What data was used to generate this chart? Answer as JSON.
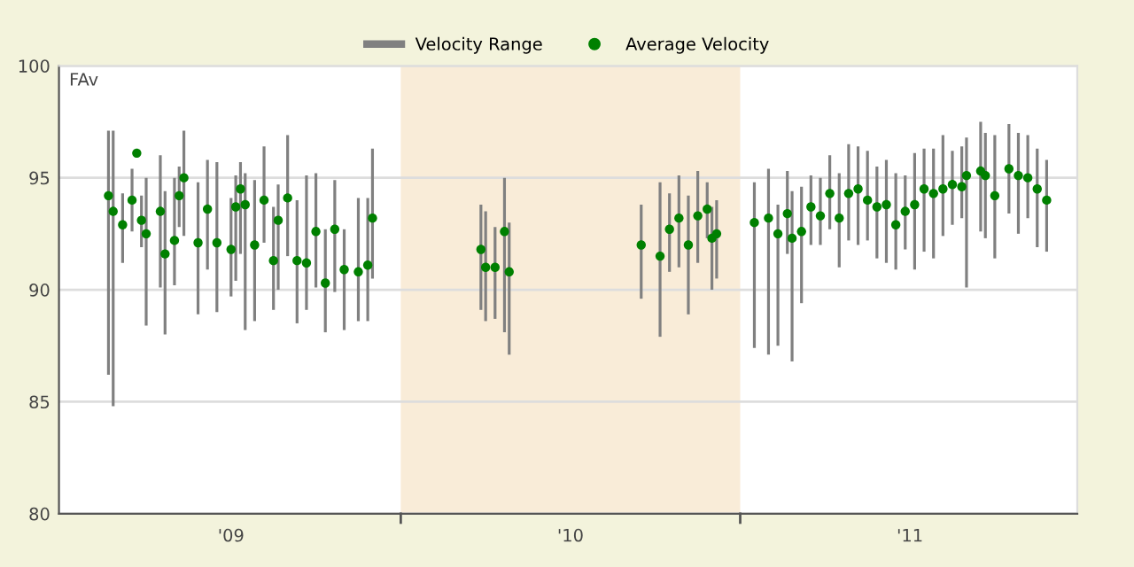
{
  "chart_data": {
    "type": "scatter",
    "ylabel": "FAv",
    "categories": [
      null,
      null,
      null,
      null,
      null,
      null,
      null,
      null,
      null,
      null,
      null,
      null,
      null,
      null,
      null,
      null,
      null,
      null,
      null,
      null,
      null,
      null,
      null,
      null,
      null,
      null,
      null,
      null,
      null,
      null,
      null,
      null,
      null,
      null,
      null,
      null,
      "'09",
      null,
      null,
      null,
      null,
      null,
      null,
      null,
      null,
      null,
      null,
      null,
      null,
      null,
      null,
      null,
      null,
      null,
      null,
      null,
      null,
      null,
      null,
      null,
      null,
      null,
      null,
      null,
      null,
      null,
      null,
      null,
      null,
      null,
      null,
      null,
      null,
      null,
      null,
      null,
      null,
      null,
      null,
      null,
      null,
      null,
      null,
      null,
      null,
      null,
      null,
      null,
      null,
      null,
      null,
      null,
      null,
      null,
      null,
      null,
      null,
      null,
      null,
      null,
      null,
      null,
      null,
      null,
      null,
      null,
      null,
      null,
      "'10",
      null,
      null,
      null,
      null,
      null,
      null,
      null,
      null,
      null,
      null,
      null,
      null,
      null,
      null,
      null,
      null,
      null,
      null,
      null,
      null,
      null,
      null,
      null,
      null,
      null,
      null,
      null,
      null,
      null,
      null,
      null,
      null,
      null,
      null,
      null,
      null,
      null,
      null,
      null,
      null,
      null,
      null,
      null,
      null,
      null,
      null,
      null,
      null,
      null,
      null,
      null,
      null,
      null,
      null,
      null,
      null,
      null,
      null,
      null,
      null,
      null,
      null,
      null,
      null,
      null,
      null,
      null,
      null,
      null,
      null,
      null,
      "'11",
      null,
      null,
      null,
      null,
      null,
      null,
      null,
      null,
      null,
      null,
      null,
      null,
      null,
      null,
      null,
      null,
      null,
      null,
      null,
      null,
      null,
      null,
      null,
      null,
      null,
      null,
      null,
      null,
      null,
      null,
      null,
      null,
      null,
      null,
      null
    ],
    "ylim": [
      80,
      100
    ],
    "yticks": [
      80,
      85,
      90,
      95,
      100
    ],
    "grid": "y",
    "legend": "top",
    "series": [
      {
        "name": "Velocity Range",
        "type": "bar",
        "color": "#808080",
        "base": [
          null,
          null,
          null,
          null,
          null,
          null,
          null,
          null,
          null,
          null,
          86.2,
          84.8,
          null,
          91.2,
          null,
          92.6,
          null,
          91.9,
          88.4,
          null,
          null,
          90.1,
          88.0,
          null,
          90.2,
          92.8,
          92.4,
          null,
          null,
          88.9,
          null,
          90.9,
          null,
          89.0,
          null,
          null,
          89.7,
          90.4,
          91.6,
          88.2,
          null,
          88.6,
          null,
          92.1,
          null,
          89.1,
          90.0,
          null,
          91.5,
          null,
          88.5,
          null,
          89.1,
          null,
          90.1,
          null,
          88.1,
          null,
          89.9,
          null,
          88.2,
          null,
          null,
          88.6,
          null,
          88.6,
          90.5,
          null,
          null,
          null,
          null,
          null,
          null,
          null,
          null,
          null,
          null,
          null,
          null,
          null,
          null,
          null,
          null,
          null,
          null,
          null,
          null,
          null,
          null,
          89.1,
          88.6,
          null,
          88.7,
          null,
          88.1,
          87.1,
          null,
          null,
          null,
          null,
          null,
          null,
          null,
          null,
          null,
          null,
          null,
          null,
          null,
          null,
          null,
          null,
          null,
          null,
          null,
          null,
          null,
          null,
          null,
          null,
          null,
          null,
          null,
          89.6,
          null,
          null,
          null,
          87.9,
          null,
          90.8,
          null,
          91.0,
          null,
          88.9,
          null,
          91.2,
          null,
          92.3,
          90.0,
          90.5,
          null,
          null,
          null,
          null,
          null,
          null,
          null,
          87.4,
          null,
          null,
          87.1,
          null,
          87.5,
          null,
          91.6,
          86.8,
          null,
          89.4,
          null,
          92.0,
          null,
          92.0,
          null,
          92.7,
          null,
          91.0,
          null,
          92.2,
          null,
          92.0,
          null,
          92.2,
          null,
          91.4,
          null,
          91.2,
          null,
          90.9,
          null,
          91.8,
          null,
          90.9,
          null,
          91.7,
          null,
          91.4,
          null,
          92.4,
          null,
          92.9,
          null,
          93.2,
          90.1,
          null,
          null,
          92.6,
          92.3,
          null,
          91.4,
          null,
          null,
          93.4,
          null,
          92.5,
          null,
          93.2,
          null,
          91.9,
          null,
          91.7,
          null,
          null,
          null,
          null,
          null,
          null
        ],
        "values": [
          null,
          null,
          null,
          null,
          null,
          null,
          null,
          null,
          null,
          null,
          10.9,
          12.3,
          null,
          3.1,
          null,
          2.8,
          null,
          2.3,
          6.6,
          null,
          null,
          5.9,
          6.4,
          null,
          4.8,
          2.7,
          4.7,
          null,
          null,
          5.9,
          null,
          4.9,
          null,
          6.7,
          null,
          null,
          4.4,
          4.7,
          4.1,
          7.0,
          null,
          6.3,
          null,
          4.3,
          null,
          4.6,
          4.7,
          null,
          5.4,
          null,
          5.5,
          null,
          6.0,
          null,
          5.1,
          null,
          4.6,
          null,
          5.0,
          null,
          4.5,
          null,
          null,
          5.5,
          null,
          5.5,
          5.8,
          null,
          null,
          null,
          null,
          null,
          null,
          null,
          null,
          null,
          null,
          null,
          null,
          null,
          null,
          null,
          null,
          null,
          null,
          null,
          null,
          null,
          null,
          4.7,
          4.9,
          null,
          4.1,
          null,
          6.9,
          5.9,
          null,
          null,
          null,
          null,
          null,
          null,
          null,
          null,
          null,
          null,
          null,
          null,
          null,
          null,
          null,
          null,
          null,
          null,
          null,
          null,
          null,
          null,
          null,
          null,
          null,
          null,
          null,
          4.2,
          null,
          null,
          null,
          6.9,
          null,
          3.5,
          null,
          4.1,
          null,
          5.3,
          null,
          4.1,
          null,
          2.5,
          3.7,
          3.5,
          null,
          null,
          null,
          null,
          null,
          null,
          null,
          7.4,
          null,
          null,
          8.3,
          null,
          6.3,
          null,
          3.7,
          7.6,
          null,
          5.2,
          null,
          3.1,
          null,
          3.0,
          null,
          3.3,
          null,
          4.2,
          null,
          4.3,
          null,
          4.4,
          null,
          4.0,
          null,
          4.1,
          null,
          4.6,
          null,
          4.3,
          null,
          3.3,
          null,
          5.2,
          null,
          4.6,
          null,
          4.9,
          null,
          4.5,
          null,
          3.3,
          null,
          3.2,
          6.7,
          null,
          null,
          4.9,
          4.7,
          null,
          5.5,
          null,
          null,
          4.0,
          null,
          4.5,
          null,
          3.7,
          null,
          4.4,
          null,
          4.1,
          null,
          null,
          null,
          null,
          null,
          null
        ]
      },
      {
        "name": "Average Velocity",
        "color": "#008000",
        "marker": "circle",
        "values": [
          null,
          null,
          null,
          null,
          null,
          null,
          null,
          null,
          null,
          null,
          94.2,
          93.5,
          null,
          92.9,
          null,
          94.0,
          96.1,
          93.1,
          92.5,
          null,
          null,
          93.5,
          91.6,
          null,
          92.2,
          94.2,
          95.0,
          null,
          null,
          92.1,
          null,
          93.6,
          null,
          92.1,
          null,
          null,
          91.8,
          93.7,
          94.5,
          93.8,
          null,
          92.0,
          null,
          94.0,
          null,
          91.3,
          93.1,
          null,
          94.1,
          null,
          91.3,
          null,
          91.2,
          null,
          92.6,
          null,
          90.3,
          null,
          92.7,
          null,
          90.9,
          null,
          null,
          90.8,
          null,
          91.1,
          93.2,
          null,
          null,
          null,
          null,
          null,
          null,
          null,
          null,
          null,
          null,
          null,
          null,
          null,
          null,
          null,
          null,
          null,
          null,
          null,
          null,
          null,
          null,
          91.8,
          91.0,
          null,
          91.0,
          null,
          92.6,
          90.8,
          null,
          null,
          null,
          null,
          null,
          null,
          null,
          null,
          null,
          null,
          null,
          null,
          null,
          null,
          null,
          null,
          null,
          null,
          null,
          null,
          null,
          null,
          null,
          null,
          null,
          null,
          null,
          92.0,
          null,
          null,
          null,
          91.5,
          null,
          92.7,
          null,
          93.2,
          null,
          92.0,
          null,
          93.3,
          null,
          93.6,
          92.3,
          92.5,
          null,
          null,
          null,
          null,
          null,
          null,
          null,
          93.0,
          null,
          null,
          93.2,
          null,
          92.5,
          null,
          93.4,
          92.3,
          null,
          92.6,
          null,
          93.7,
          null,
          93.3,
          null,
          94.3,
          null,
          93.2,
          null,
          94.3,
          null,
          94.5,
          null,
          94.0,
          null,
          93.7,
          null,
          93.8,
          null,
          92.9,
          null,
          93.5,
          null,
          93.8,
          null,
          94.5,
          null,
          94.3,
          null,
          94.5,
          null,
          94.7,
          null,
          94.6,
          95.1,
          null,
          null,
          95.3,
          95.1,
          null,
          94.2,
          null,
          null,
          95.4,
          null,
          95.1,
          null,
          95.0,
          null,
          94.5,
          null,
          94.0,
          null,
          null,
          null,
          null,
          null,
          null
        ]
      }
    ]
  }
}
